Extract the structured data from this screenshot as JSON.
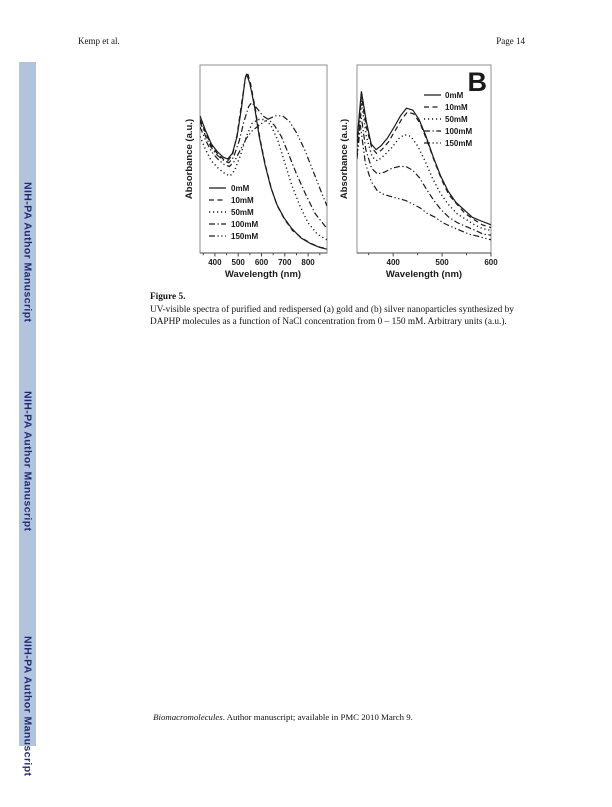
{
  "header": {
    "author": "Kemp et al.",
    "page_number": "Page 14"
  },
  "sidebar": {
    "bg_color": "#b0c4de",
    "text_color": "#1c2a6e",
    "labels": [
      "NIH-PA Author Manuscript",
      "NIH-PA Author Manuscript",
      "NIH-PA Author Manuscript"
    ]
  },
  "caption": {
    "title": "Figure 5.",
    "body": "UV-visible spectra of purified and redispersed (a) gold and (b) silver nanoparticles synthesized by DAPHP molecules as a function of NaCl concentration from 0 – 150 mM. Arbitrary units (a.u.)."
  },
  "footer": {
    "journal": "Biomacromolecules",
    "rest": ". Author manuscript; available in PMC 2010 March 9."
  },
  "colors": {
    "curve": "#1a1a1a",
    "box_border": "#8f8f8f",
    "axis": "#444444"
  },
  "chart_data": [
    {
      "type": "line",
      "panel_label": "",
      "description": "UV-visible spectra of gold nanoparticles vs NaCl concentration",
      "xlabel": "Wavelength (nm)",
      "ylabel": "Absorbance (a.u.)",
      "xlim": [
        336,
        881
      ],
      "ylim": [
        0,
        1
      ],
      "x_ticks": [
        400,
        500,
        600,
        700,
        800
      ],
      "x_minor_ticks": [
        350,
        450,
        550,
        650,
        750,
        850
      ],
      "grid": false,
      "legend_position": "lower-left",
      "series": [
        {
          "name": "0mM",
          "linestyle": "solid",
          "x": [
            336,
            360,
            385,
            410,
            435,
            455,
            475,
            495,
            515,
            530,
            537,
            550,
            570,
            590,
            615,
            640,
            665,
            695,
            730,
            770,
            810,
            850,
            881
          ],
          "y": [
            0.73,
            0.65,
            0.58,
            0.54,
            0.51,
            0.5,
            0.53,
            0.62,
            0.78,
            0.93,
            0.95,
            0.9,
            0.78,
            0.62,
            0.47,
            0.35,
            0.26,
            0.19,
            0.13,
            0.08,
            0.05,
            0.03,
            0.02
          ]
        },
        {
          "name": "10mM",
          "linestyle": "dashed",
          "x": [
            336,
            360,
            385,
            410,
            435,
            455,
            475,
            495,
            515,
            532,
            540,
            553,
            573,
            593,
            618,
            643,
            668,
            698,
            733,
            773,
            813,
            853,
            881
          ],
          "y": [
            0.71,
            0.64,
            0.57,
            0.53,
            0.5,
            0.49,
            0.52,
            0.63,
            0.8,
            0.94,
            0.96,
            0.9,
            0.77,
            0.61,
            0.46,
            0.34,
            0.25,
            0.18,
            0.12,
            0.08,
            0.05,
            0.03,
            0.025
          ]
        },
        {
          "name": "50mM",
          "linestyle": "dotted",
          "x": [
            336,
            360,
            385,
            415,
            445,
            465,
            485,
            510,
            535,
            560,
            585,
            615,
            640,
            670,
            700,
            730,
            765,
            800,
            840,
            881
          ],
          "y": [
            0.62,
            0.55,
            0.49,
            0.45,
            0.42,
            0.41,
            0.44,
            0.52,
            0.62,
            0.69,
            0.71,
            0.71,
            0.68,
            0.6,
            0.48,
            0.36,
            0.25,
            0.16,
            0.1,
            0.07
          ]
        },
        {
          "name": "100mM",
          "linestyle": "dash-dot",
          "x": [
            336,
            360,
            385,
            410,
            440,
            460,
            480,
            505,
            525,
            545,
            558,
            580,
            605,
            630,
            655,
            685,
            715,
            750,
            790,
            830,
            881
          ],
          "y": [
            0.7,
            0.62,
            0.56,
            0.52,
            0.49,
            0.48,
            0.51,
            0.6,
            0.7,
            0.78,
            0.8,
            0.77,
            0.73,
            0.71,
            0.68,
            0.62,
            0.53,
            0.42,
            0.31,
            0.21,
            0.13
          ]
        },
        {
          "name": "150mM",
          "linestyle": "dash-dot-dot",
          "x": [
            336,
            360,
            385,
            412,
            440,
            462,
            485,
            510,
            535,
            560,
            590,
            625,
            660,
            690,
            720,
            750,
            785,
            820,
            855,
            881
          ],
          "y": [
            0.67,
            0.6,
            0.54,
            0.5,
            0.47,
            0.46,
            0.49,
            0.55,
            0.61,
            0.65,
            0.68,
            0.71,
            0.73,
            0.73,
            0.7,
            0.64,
            0.55,
            0.44,
            0.33,
            0.25
          ]
        }
      ]
    },
    {
      "type": "line",
      "panel_label": "B",
      "description": "UV-visible spectra of silver nanoparticles vs NaCl concentration",
      "xlabel": "Wavelength (nm)",
      "ylabel": "Absorbance (a.u.)",
      "xlim": [
        326,
        600
      ],
      "ylim": [
        0,
        1
      ],
      "x_ticks": [
        400,
        500,
        600
      ],
      "x_minor_ticks": [
        350,
        450,
        550
      ],
      "grid": false,
      "legend_position": "upper-right",
      "series": [
        {
          "name": "0mM",
          "linestyle": "solid",
          "x": [
            326,
            335,
            345,
            355,
            365,
            375,
            388,
            402,
            415,
            427,
            440,
            453,
            467,
            482,
            497,
            512,
            528,
            545,
            562,
            580,
            600
          ],
          "y": [
            0.6,
            0.86,
            0.7,
            0.58,
            0.55,
            0.57,
            0.61,
            0.67,
            0.73,
            0.77,
            0.76,
            0.71,
            0.62,
            0.51,
            0.41,
            0.33,
            0.27,
            0.23,
            0.19,
            0.17,
            0.15
          ]
        },
        {
          "name": "10mM",
          "linestyle": "dashed",
          "x": [
            326,
            335,
            345,
            356,
            366,
            377,
            390,
            404,
            417,
            429,
            442,
            455,
            469,
            484,
            499,
            514,
            530,
            547,
            564,
            582,
            600
          ],
          "y": [
            0.58,
            0.83,
            0.67,
            0.56,
            0.53,
            0.55,
            0.59,
            0.65,
            0.71,
            0.75,
            0.74,
            0.69,
            0.6,
            0.49,
            0.39,
            0.31,
            0.26,
            0.21,
            0.18,
            0.15,
            0.135
          ]
        },
        {
          "name": "50mM",
          "linestyle": "dotted",
          "x": [
            326,
            335,
            345,
            357,
            368,
            382,
            397,
            412,
            423,
            436,
            450,
            465,
            480,
            496,
            512,
            530,
            548,
            566,
            583,
            600
          ],
          "y": [
            0.55,
            0.8,
            0.62,
            0.51,
            0.49,
            0.52,
            0.56,
            0.61,
            0.63,
            0.62,
            0.57,
            0.49,
            0.4,
            0.32,
            0.26,
            0.21,
            0.18,
            0.15,
            0.13,
            0.12
          ]
        },
        {
          "name": "100mM",
          "linestyle": "dash-dot",
          "x": [
            326,
            334,
            344,
            356,
            368,
            382,
            397,
            412,
            426,
            440,
            454,
            468,
            483,
            498,
            514,
            532,
            550,
            568,
            584,
            600
          ],
          "y": [
            0.52,
            0.74,
            0.55,
            0.45,
            0.42,
            0.43,
            0.45,
            0.46,
            0.46,
            0.44,
            0.4,
            0.34,
            0.28,
            0.23,
            0.19,
            0.16,
            0.14,
            0.12,
            0.1,
            0.095
          ]
        },
        {
          "name": "150mM",
          "linestyle": "dash-dot-dot",
          "x": [
            326,
            333,
            343,
            355,
            368,
            382,
            396,
            410,
            425,
            440,
            455,
            470,
            486,
            502,
            519,
            537,
            555,
            572,
            586,
            600
          ],
          "y": [
            0.5,
            0.68,
            0.48,
            0.38,
            0.33,
            0.31,
            0.3,
            0.29,
            0.28,
            0.26,
            0.24,
            0.21,
            0.19,
            0.16,
            0.14,
            0.12,
            0.1,
            0.09,
            0.08,
            0.07
          ]
        }
      ]
    }
  ]
}
